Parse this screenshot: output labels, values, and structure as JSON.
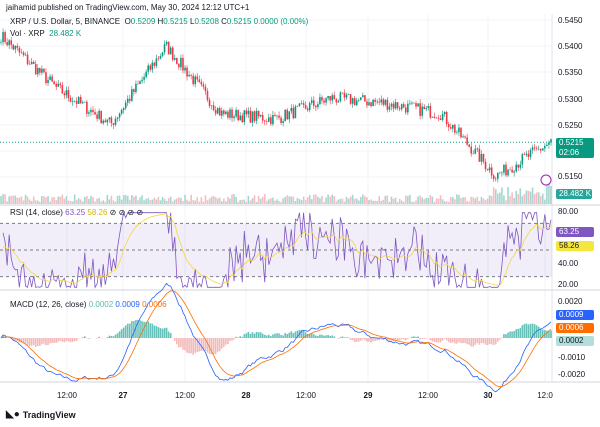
{
  "header": {
    "published": "jaihamid published on TradingView.com, May 30, 2024 12:12 UTC+1"
  },
  "legend": {
    "symbol": "XRP / U.S. Dollar, 5, BINANCE",
    "o_label": "O",
    "o": "0.5209",
    "h_label": "H",
    "h": "0.5215",
    "l_label": "L",
    "l": "0.5208",
    "c_label": "C",
    "c": "0.5215",
    "change": "0.0000 (0.00%)"
  },
  "volume": {
    "label": "Vol · XRP",
    "value": "28.482 K"
  },
  "price_axis": [
    "0.5450",
    "0.5400",
    "0.5350",
    "0.5300",
    "0.5250",
    "0.5150"
  ],
  "price_badge": {
    "price": "0.5215",
    "countdown": "02:06"
  },
  "volume_badge": "28.482 K",
  "rsi": {
    "label": "RSI (14, close)",
    "value": "63.25",
    "ma": "58.26",
    "extra": "⊘ ⊘ ⊘ ⊘",
    "axis": [
      "80.00",
      "40.00",
      "20.00"
    ]
  },
  "macd": {
    "label": "MACD (12, 26, close)",
    "hist": "0.0002",
    "macd": "0.0009",
    "signal": "0.0006",
    "axis": [
      "0.0020",
      "-0.0010",
      "-0.0020"
    ]
  },
  "x_axis": [
    "12:00",
    "27",
    "12:00",
    "28",
    "12:00",
    "29",
    "12:00",
    "30",
    "12:0"
  ],
  "logo": "TradingView",
  "colors": {
    "up": "#089981",
    "down": "#f23645",
    "rsi": "#7e57c2",
    "rsi_ma": "#f5d63d",
    "macd": "#2962ff",
    "signal": "#ff6d00"
  },
  "chart_data": {
    "type": "line",
    "title": "XRP / U.S. Dollar, 5, BINANCE",
    "x": [
      "26 00:00",
      "26 12:00",
      "27 00:00",
      "27 12:00",
      "28 00:00",
      "28 12:00",
      "29 00:00",
      "29 12:00",
      "30 00:00",
      "30 08:00",
      "30 12:12"
    ],
    "series": [
      {
        "name": "Price",
        "values": [
          0.542,
          0.532,
          0.525,
          0.54,
          0.527,
          0.526,
          0.53,
          0.529,
          0.527,
          0.515,
          0.5215
        ]
      }
    ],
    "ylim": [
      0.513,
      0.546
    ]
  }
}
